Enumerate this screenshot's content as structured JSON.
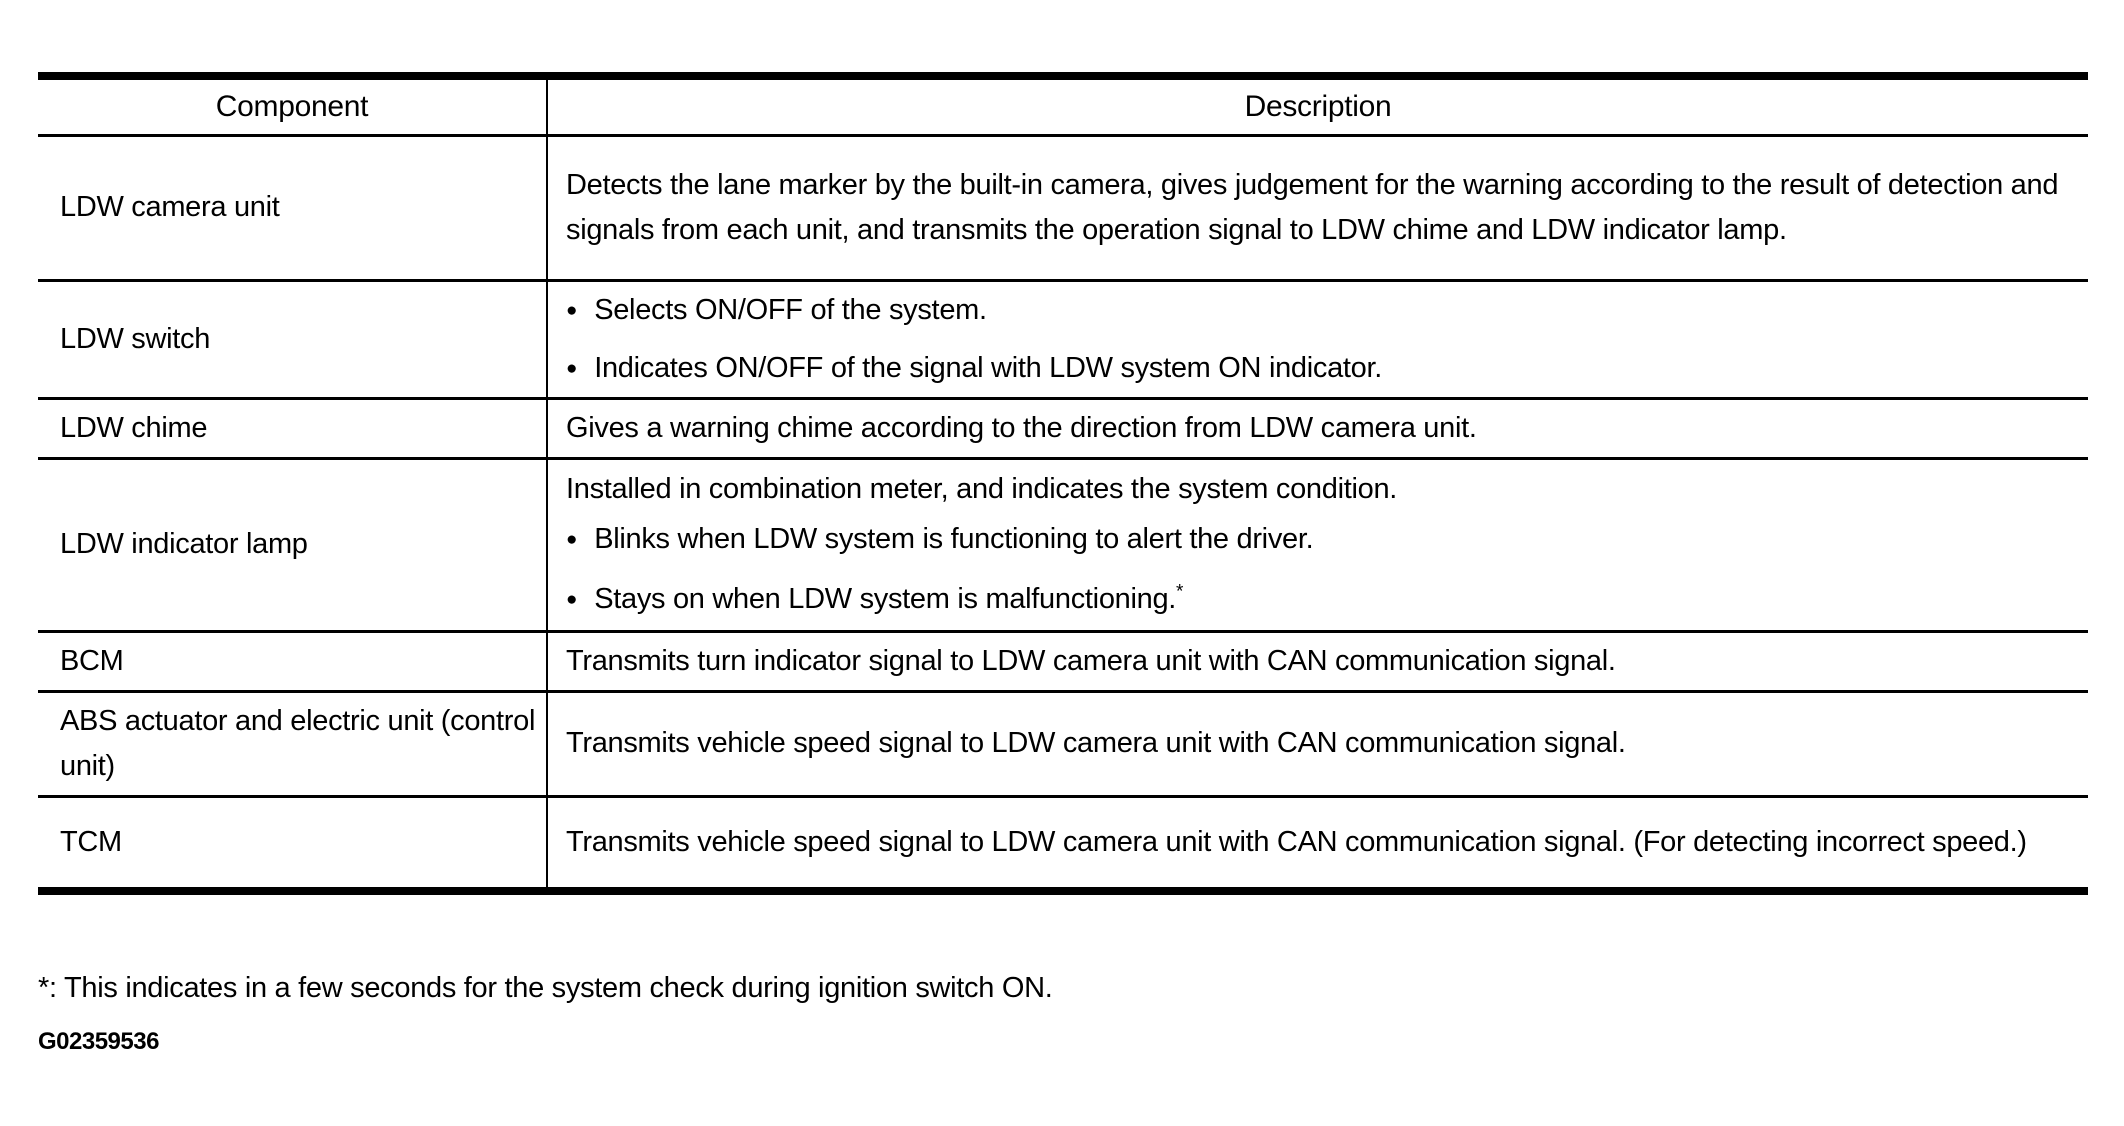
{
  "page": {
    "background": "#ffffff",
    "text_color": "#000000",
    "border_color": "#000000"
  },
  "icons": {
    "bullet": "●"
  },
  "table": {
    "headers": {
      "component": "Component",
      "description": "Description"
    },
    "rows": [
      {
        "component": "LDW camera unit",
        "paragraph": "Detects the lane marker by the built-in camera, gives judgement for the warning according to the result of detection and signals from each unit, and transmits the operation signal to LDW chime and LDW indicator lamp."
      },
      {
        "component": "LDW switch",
        "bullets": [
          "Selects ON/OFF of the system.",
          "Indicates ON/OFF of the signal with LDW system ON indicator."
        ]
      },
      {
        "component": "LDW chime",
        "paragraph": "Gives a warning chime according to the direction from LDW camera unit."
      },
      {
        "component": "LDW indicator lamp",
        "paragraph": "Installed in combination meter, and indicates the system condition.",
        "bullets": [
          "Blinks when LDW system is functioning to alert the driver.",
          "Stays on when LDW system is malfunctioning."
        ],
        "bullet_superscript": "*"
      },
      {
        "component": "BCM",
        "paragraph": "Transmits turn indicator signal to LDW camera unit with CAN communication signal."
      },
      {
        "component": "ABS actuator and electric unit (control unit)",
        "paragraph": "Transmits vehicle speed signal to LDW camera unit with CAN communication signal."
      },
      {
        "component": "TCM",
        "paragraph": "Transmits vehicle speed signal to LDW camera unit with CAN communication signal. (For detecting incorrect speed.)"
      }
    ]
  },
  "footnote": "*: This indicates in a few seconds for the system check during ignition switch ON.",
  "figure_code": "G02359536"
}
